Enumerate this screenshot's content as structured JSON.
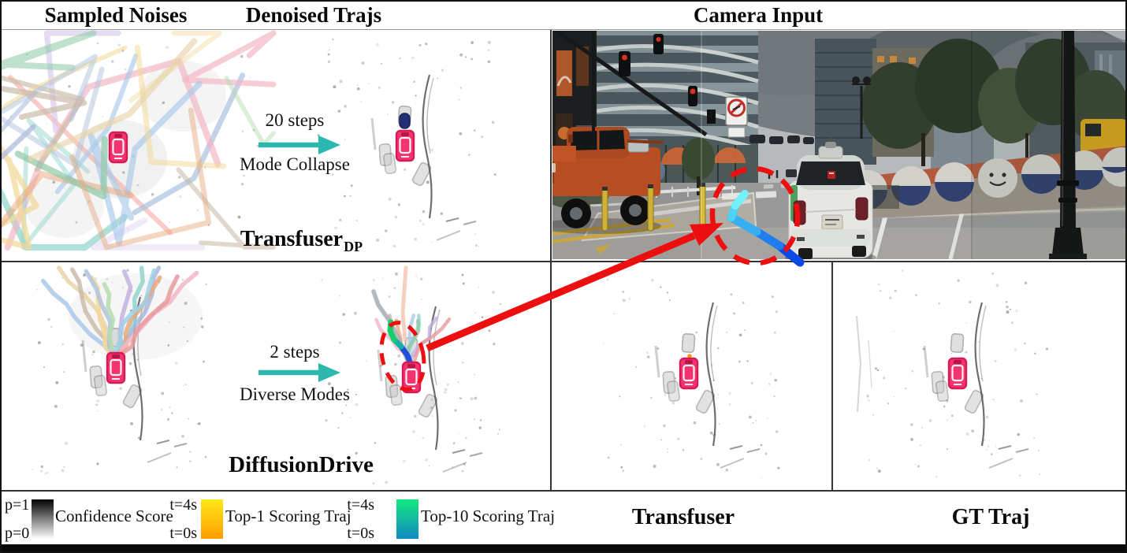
{
  "headers": {
    "col1": "Sampled Noises",
    "col2": "Denoised Trajs",
    "col3": "Camera Input"
  },
  "top_row": {
    "steps": "20 steps",
    "caption": "Mode Collapse",
    "model_name": "Transfuser",
    "model_sub": "DP"
  },
  "bottom_row": {
    "steps": "2 steps",
    "caption": "Diverse Modes",
    "model": "DiffusionDrive"
  },
  "footer_panels": {
    "transfuser": "Transfuser",
    "gt": "GT Traj"
  },
  "legend": {
    "confidence": {
      "top": "p=1",
      "bottom": "p=0",
      "label": "Confidence Score",
      "grad_top": "#000000",
      "grad_bottom": "#ffffff"
    },
    "top1": {
      "top": "t=4s",
      "bottom": "t=0s",
      "label": "Top-1 Scoring Traj",
      "grad_top": "#ffe817",
      "grad_bottom": "#ff9d00"
    },
    "top10": {
      "top": "t=4s",
      "bottom": "t=0s",
      "label": "Top-10 Scoring Traj",
      "grad_top": "#12e97e",
      "grad_bottom": "#1289c4"
    }
  },
  "colors": {
    "arrow_teal": "#2cb8ae",
    "annotation_red": "#ed0f0f",
    "ego_car_pink": "#f4336f",
    "traj_blue": "#1e4fe4",
    "traj_teal": "#0fb2a2",
    "traj_green": "#17cf6a",
    "camera_traj_deep_blue": "#0c4ae6",
    "camera_traj_cyan_tip": "#72f0fb",
    "denoised_blob_navy": "#19276e",
    "top1_dot_orange": "#f29a12"
  }
}
